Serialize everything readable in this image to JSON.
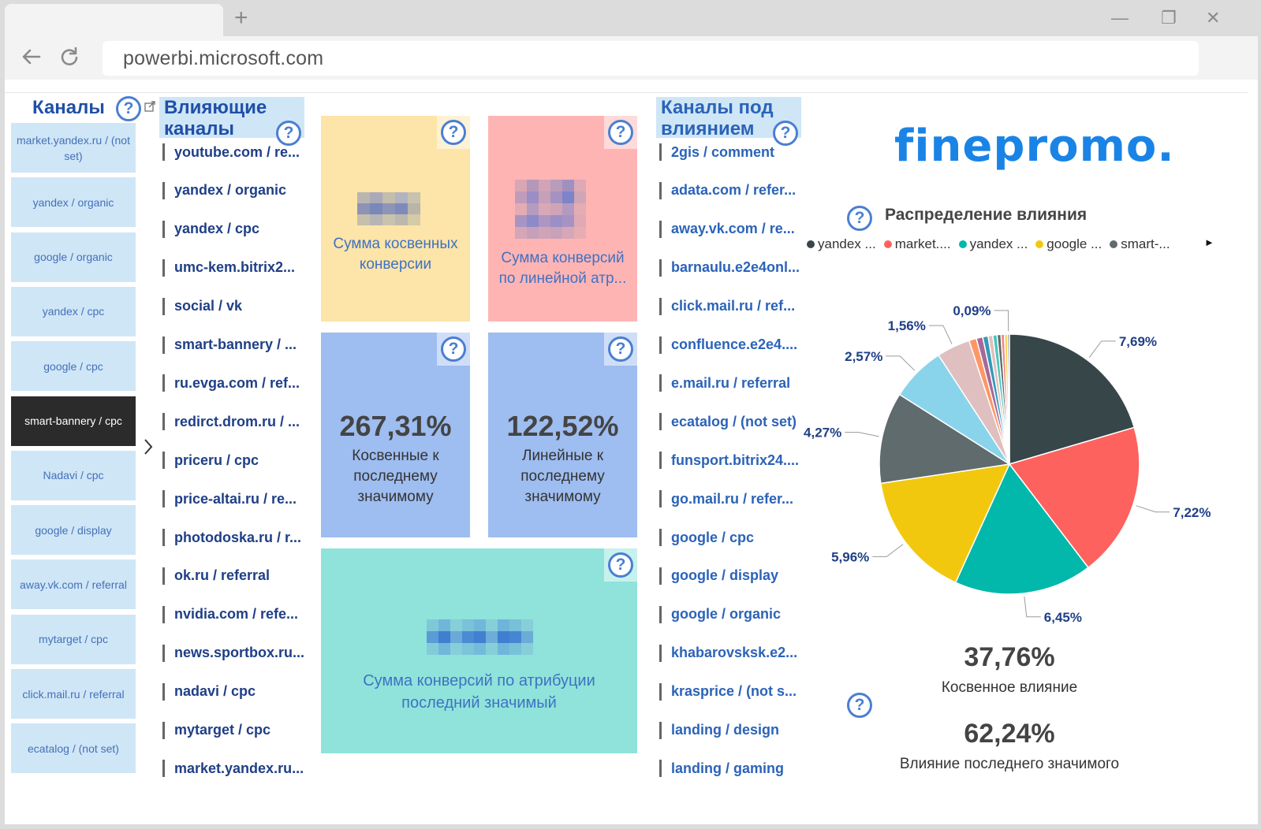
{
  "browser": {
    "new_tab_glyph": "+",
    "url": "powerbi.microsoft.com",
    "window_controls": [
      "—",
      "❐",
      "✕"
    ]
  },
  "channels": {
    "title": "Каналы",
    "items": [
      "market.yandex.ru / (not set)",
      "yandex / organic",
      "google / organic",
      "yandex / cpc",
      "google / cpc",
      "smart-bannery / cpc",
      "Nadavi / cpc",
      "google / display",
      "away.vk.com / referral",
      "mytarget / cpc",
      "click.mail.ru / referral",
      "ecatalog / (not set)"
    ],
    "selected_index": 5
  },
  "influencing": {
    "title_line1": "Влияющие",
    "title_line2": "каналы",
    "items": [
      "youtube.com / re...",
      "yandex / organic",
      "yandex / cpc",
      "umc-kem.bitrix2...",
      "social / vk",
      "smart-bannery / ...",
      "ru.evga.com / ref...",
      "redirct.drom.ru / ...",
      "priceru / cpc",
      "price-altai.ru / re...",
      "photodoska.ru / r...",
      "ok.ru / referral",
      "nvidia.com / refe...",
      "news.sportbox.ru...",
      "nadavi / cpc",
      "mytarget / cpc",
      "market.yandex.ru..."
    ]
  },
  "cards": {
    "indirect_sum_label": "Сумма косвенных конверсии",
    "linear_sum_label": "Сумма конверсий по линейной атр...",
    "indirect_pct_value": "267,31%",
    "indirect_pct_label": "Косвенные к последнему значимому",
    "linear_pct_value": "122,52%",
    "linear_pct_label": "Линейные к последнему значимому",
    "last_sum_label": "Сумма конверсий по атрибуции последний значимый",
    "colors": {
      "yellow": "#fde4a8",
      "pink": "#ffb4b4",
      "blue": "#9ebdf0",
      "teal": "#8fe3da"
    }
  },
  "influenced": {
    "title_line1": "Каналы под",
    "title_line2": "влиянием",
    "items": [
      "2gis / comment",
      "adata.com / refer...",
      "away.vk.com / re...",
      "barnaulu.e2e4onl...",
      "click.mail.ru / ref...",
      "confluence.e2e4....",
      "e.mail.ru / referral",
      "ecatalog / (not set)",
      "funsport.bitrix24....",
      "go.mail.ru / refer...",
      "google / cpc",
      "google / display",
      "google / organic",
      "khabarovsksk.e2...",
      "krasprice / (not s...",
      "landing / design",
      "landing / gaming"
    ]
  },
  "brand": {
    "logo_text": "finepromo.",
    "color": "#1a84e6"
  },
  "pie": {
    "title": "Распределение влияния",
    "legend": [
      {
        "label": "yandex ...",
        "color": "#374649"
      },
      {
        "label": "market....",
        "color": "#fd625e"
      },
      {
        "label": "yandex ...",
        "color": "#01b8aa"
      },
      {
        "label": "google ...",
        "color": "#f2c80f"
      },
      {
        "label": "smart-...",
        "color": "#5f6b6d"
      }
    ],
    "legend_more_glyph": "►"
  },
  "chart_data": {
    "type": "pie",
    "title": "Распределение влияния",
    "slices": [
      {
        "label": "7,69%",
        "value": 7.69,
        "color": "#374649"
      },
      {
        "label": "7,22%",
        "value": 7.22,
        "color": "#fd625e"
      },
      {
        "label": "6,45%",
        "value": 6.45,
        "color": "#01b8aa"
      },
      {
        "label": "5,96%",
        "value": 5.96,
        "color": "#f2c80f"
      },
      {
        "label": "4,27%",
        "value": 4.27,
        "color": "#5f6b6d"
      },
      {
        "label": "2,57%",
        "value": 2.57,
        "color": "#8ad4eb"
      },
      {
        "label": "1,56%",
        "value": 1.56,
        "color": "#dfbfbf"
      },
      {
        "label": "",
        "value": 0.35,
        "color": "#fe9666"
      },
      {
        "label": "",
        "value": 0.3,
        "color": "#a66999"
      },
      {
        "label": "",
        "value": 0.25,
        "color": "#3599b8"
      },
      {
        "label": "",
        "value": 0.22,
        "color": "#dfbfbf"
      },
      {
        "label": "",
        "value": 0.2,
        "color": "#4ac5bb"
      },
      {
        "label": "",
        "value": 0.18,
        "color": "#5f6b6d"
      },
      {
        "label": "",
        "value": 0.16,
        "color": "#fb8281"
      },
      {
        "label": "",
        "value": 0.14,
        "color": "#f4d25a"
      },
      {
        "label": "0,09%",
        "value": 0.09,
        "color": "#7f898a"
      }
    ]
  },
  "kpis": {
    "indirect_value": "37,76%",
    "indirect_label": "Косвенное влияние",
    "last_value": "62,24%",
    "last_label": "Влияние последнего значимого"
  }
}
